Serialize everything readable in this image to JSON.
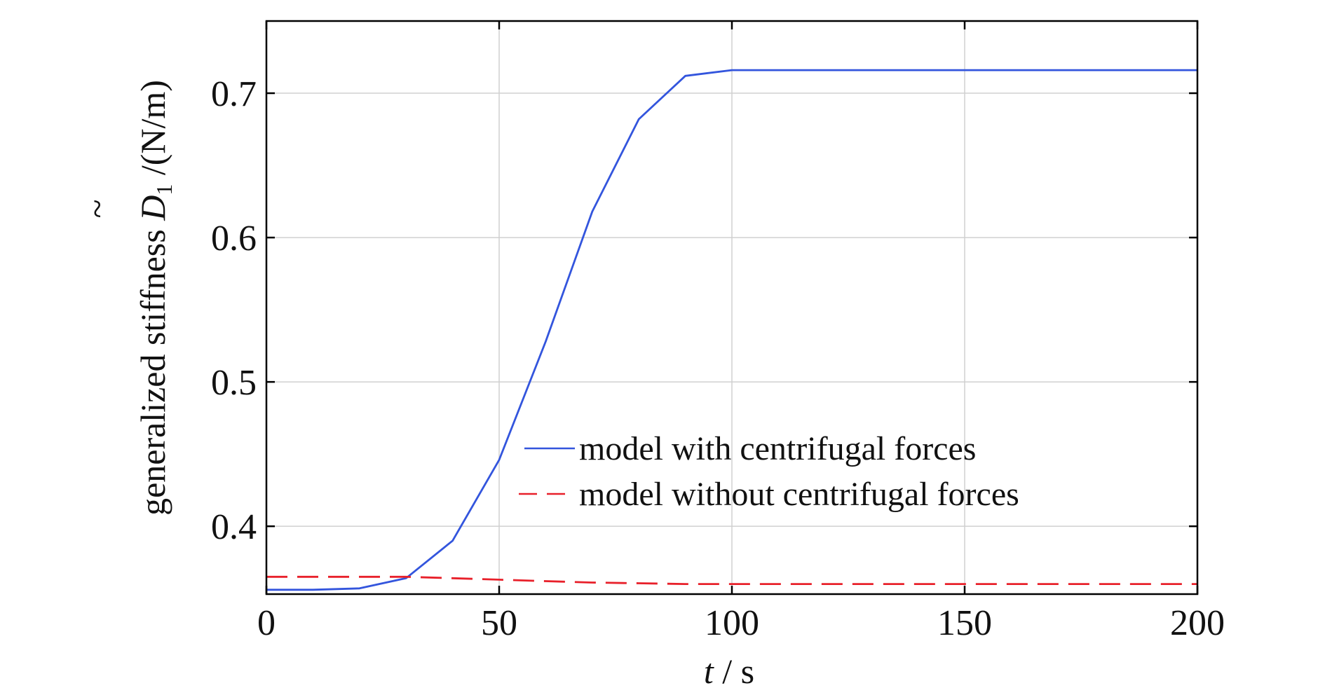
{
  "chart_data": {
    "type": "line",
    "xlabel_var": "t",
    "xlabel_unit": " / s",
    "ylabel_text": "generalized stiffness ",
    "ylabel_symbol": "D",
    "ylabel_tilde": "~",
    "ylabel_subscript": "1",
    "ylabel_unit": " /(N/m)",
    "xlim": [
      0,
      200
    ],
    "ylim": [
      0.353,
      0.75
    ],
    "xticks": [
      0,
      50,
      100,
      150,
      200
    ],
    "xtick_labels": [
      "0",
      "50",
      "100",
      "150",
      "200"
    ],
    "yticks": [
      0.4,
      0.5,
      0.6,
      0.7
    ],
    "ytick_labels": [
      "0.4",
      "0.5",
      "0.6",
      "0.7"
    ],
    "grid": true,
    "legend_position": "lower-right",
    "series": [
      {
        "name": "model with centrifugal forces",
        "color": "#3355dd",
        "dash": "solid",
        "x": [
          0,
          10,
          20,
          30,
          40,
          50,
          60,
          70,
          80,
          90,
          100,
          110,
          120,
          150,
          200
        ],
        "y": [
          0.356,
          0.356,
          0.357,
          0.364,
          0.39,
          0.446,
          0.528,
          0.618,
          0.682,
          0.712,
          0.716,
          0.716,
          0.716,
          0.716,
          0.716
        ]
      },
      {
        "name": "model without centrifugal forces",
        "color": "#e8202a",
        "dash": "dashed",
        "x": [
          0,
          10,
          20,
          30,
          40,
          50,
          60,
          70,
          80,
          90,
          100,
          150,
          200
        ],
        "y": [
          0.365,
          0.365,
          0.365,
          0.365,
          0.364,
          0.363,
          0.362,
          0.361,
          0.3605,
          0.36,
          0.36,
          0.36,
          0.36
        ]
      }
    ]
  }
}
